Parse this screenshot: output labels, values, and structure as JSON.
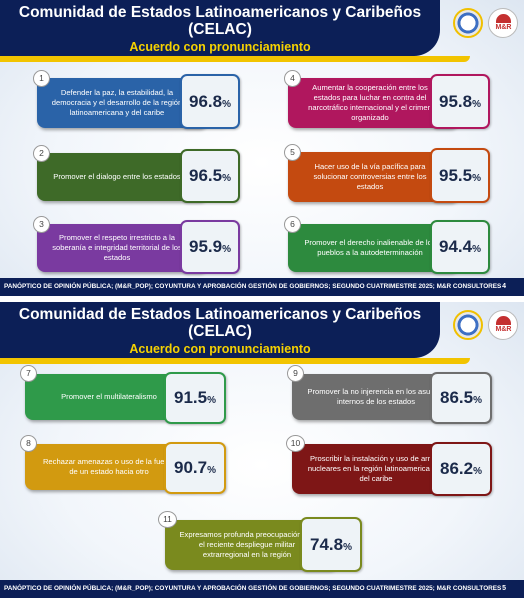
{
  "slides": [
    {
      "title": "Comunidad de Estados Latinoamericanos y Caribeños (CELAC)",
      "subtitle": "Acuerdo con pronunciamiento",
      "items": [
        {
          "number": "1",
          "text": "Defender la paz, la estabilidad, la democracia y el desarrollo de la región latinoamericana y del caribe",
          "value": "96.8",
          "color": "#2a63a8"
        },
        {
          "number": "2",
          "text": "Promover el dialogo entre los estados",
          "value": "96.5",
          "color": "#3e6a28"
        },
        {
          "number": "3",
          "text": "Promover el respeto irrestricto a la soberanía e integridad territorial de los estados",
          "value": "95.9",
          "color": "#7a3aa0"
        },
        {
          "number": "4",
          "text": "Aumentar la cooperación entre los estados para luchar en contra del narcotráfico internacional y el crimen organizado",
          "value": "95.8",
          "color": "#b0175e"
        },
        {
          "number": "5",
          "text": "Hacer uso de la vía pacífica para solucionar controversias entre los estados",
          "value": "95.5",
          "color": "#c44a10"
        },
        {
          "number": "6",
          "text": "Promover el derecho inalienable de los pueblos a la autodeterminación",
          "value": "94.4",
          "color": "#2d8a3e"
        }
      ],
      "footer": "PANÓPTICO DE OPINIÓN PÚBLICA; (M&R_POP); COYUNTURA Y APROBACIÓN GESTIÓN DE GOBIERNOS; SEGUNDO CUATRIMESTRE 2025; M&R CONSULTORES",
      "page": "4"
    },
    {
      "title": "Comunidad de Estados Latinoamericanos y Caribeños (CELAC)",
      "subtitle": "Acuerdo con pronunciamiento",
      "items": [
        {
          "number": "7",
          "text": "Promover el multilateralismo",
          "value": "91.5",
          "color": "#2f9a4a"
        },
        {
          "number": "8",
          "text": "Rechazar amenazas o uso de la fuerza de un estado hacia otro",
          "value": "90.7",
          "color": "#d29a10"
        },
        {
          "number": "9",
          "text": "Promover la no injerencia en los asuntos internos de los estados",
          "value": "86.5",
          "color": "#6e6e6e"
        },
        {
          "number": "10",
          "text": "Proscribir la instalación y uso de armas nucleares en la región latinoamericana y del caribe",
          "value": "86.2",
          "color": "#7e1616"
        },
        {
          "number": "11",
          "text": "Expresamos profunda preocupación por el reciente despliegue militar extrarregional en la región",
          "value": "74.8",
          "color": "#7a8a1e"
        }
      ],
      "footer": "PANÓPTICO DE OPINIÓN PÚBLICA; (M&R_POP); COYUNTURA Y APROBACIÓN GESTIÓN DE GOBIERNOS; SEGUNDO CUATRIMESTRE 2025; M&R CONSULTORES",
      "page": "5"
    }
  ],
  "percent_sign": "%",
  "icons": [
    "celac-logo-icon",
    "mr-consultores-logo-icon"
  ]
}
